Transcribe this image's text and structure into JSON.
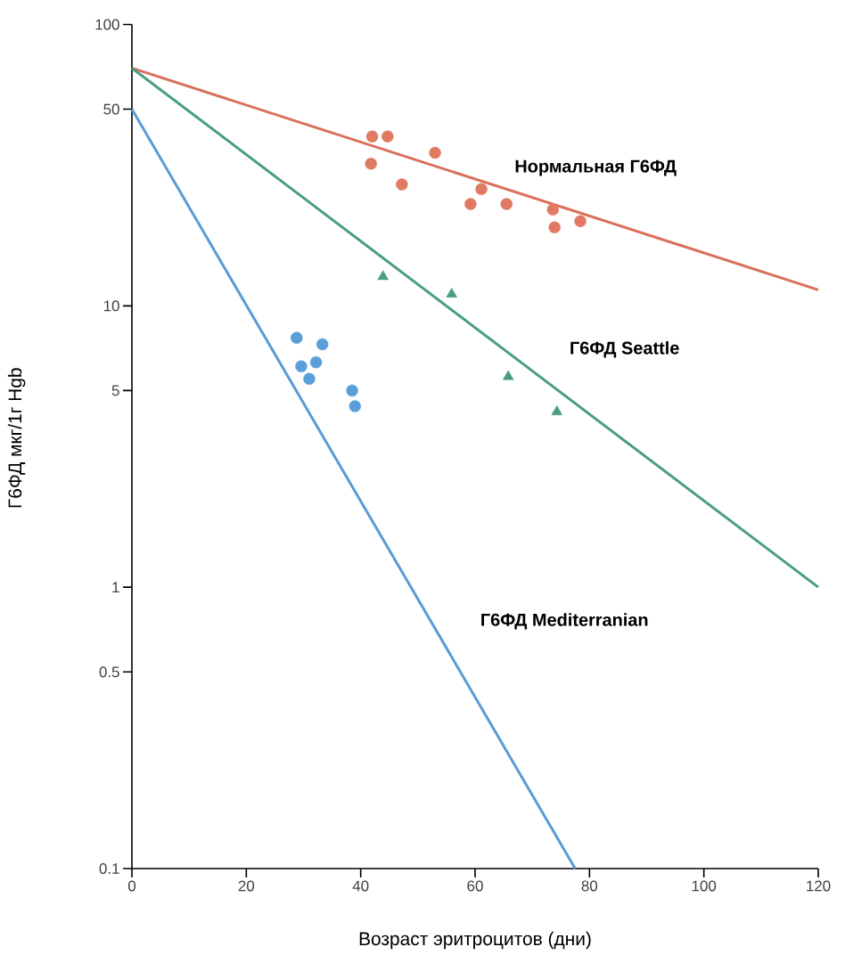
{
  "chart_data": {
    "type": "line",
    "xlabel": "Возраст эритроцитов (дни)",
    "ylabel": "Г6ФД мкг/1г Hgb",
    "log": "y",
    "grid": false,
    "legend": false,
    "xlim": [
      0,
      120
    ],
    "xticks": [
      0,
      20,
      40,
      60,
      80,
      100,
      120
    ],
    "ylim": [
      0.1,
      100
    ],
    "yticks": [
      0.1,
      0.5,
      1,
      5,
      10,
      50,
      100
    ],
    "series": [
      {
        "name": "Нормальная Г6ФД",
        "color": "#d9705a",
        "marker": "none",
        "x": [
          0,
          120
        ],
        "values": [
          70,
          11.4
        ]
      },
      {
        "name": "Г6ФД Seattle",
        "color": "#4a9e80",
        "marker": "none",
        "x": [
          0,
          120
        ],
        "values": [
          70,
          1
        ]
      },
      {
        "name": "Г6ФД Mediterranian",
        "color": "#5b9bd5",
        "marker": "none",
        "x": [
          0,
          77.5
        ],
        "values": [
          50,
          0.1
        ]
      },
      {
        "type": "scatter",
        "color": "#e07a62",
        "marker": "circle",
        "x": [
          42.0,
          44.7,
          41.8,
          47.2,
          53.0,
          61.1,
          59.2,
          65.5,
          73.6,
          73.9,
          78.4
        ],
        "values": [
          40,
          40,
          32,
          27,
          35,
          26,
          23,
          23,
          22,
          19,
          20
        ]
      },
      {
        "type": "scatter",
        "color": "#4a9e80",
        "marker": "triangle",
        "x": [
          43.9,
          55.9,
          65.8,
          74.3
        ],
        "values": [
          12.7,
          11,
          5.6,
          4.2
        ]
      },
      {
        "type": "scatter",
        "color": "#5a9fd8",
        "marker": "circle",
        "x": [
          28.8,
          33.3,
          29.6,
          32.2,
          31.0,
          38.5,
          39.0
        ],
        "values": [
          7.7,
          7.3,
          6.1,
          6.3,
          5.5,
          5.0,
          4.4
        ]
      }
    ]
  }
}
